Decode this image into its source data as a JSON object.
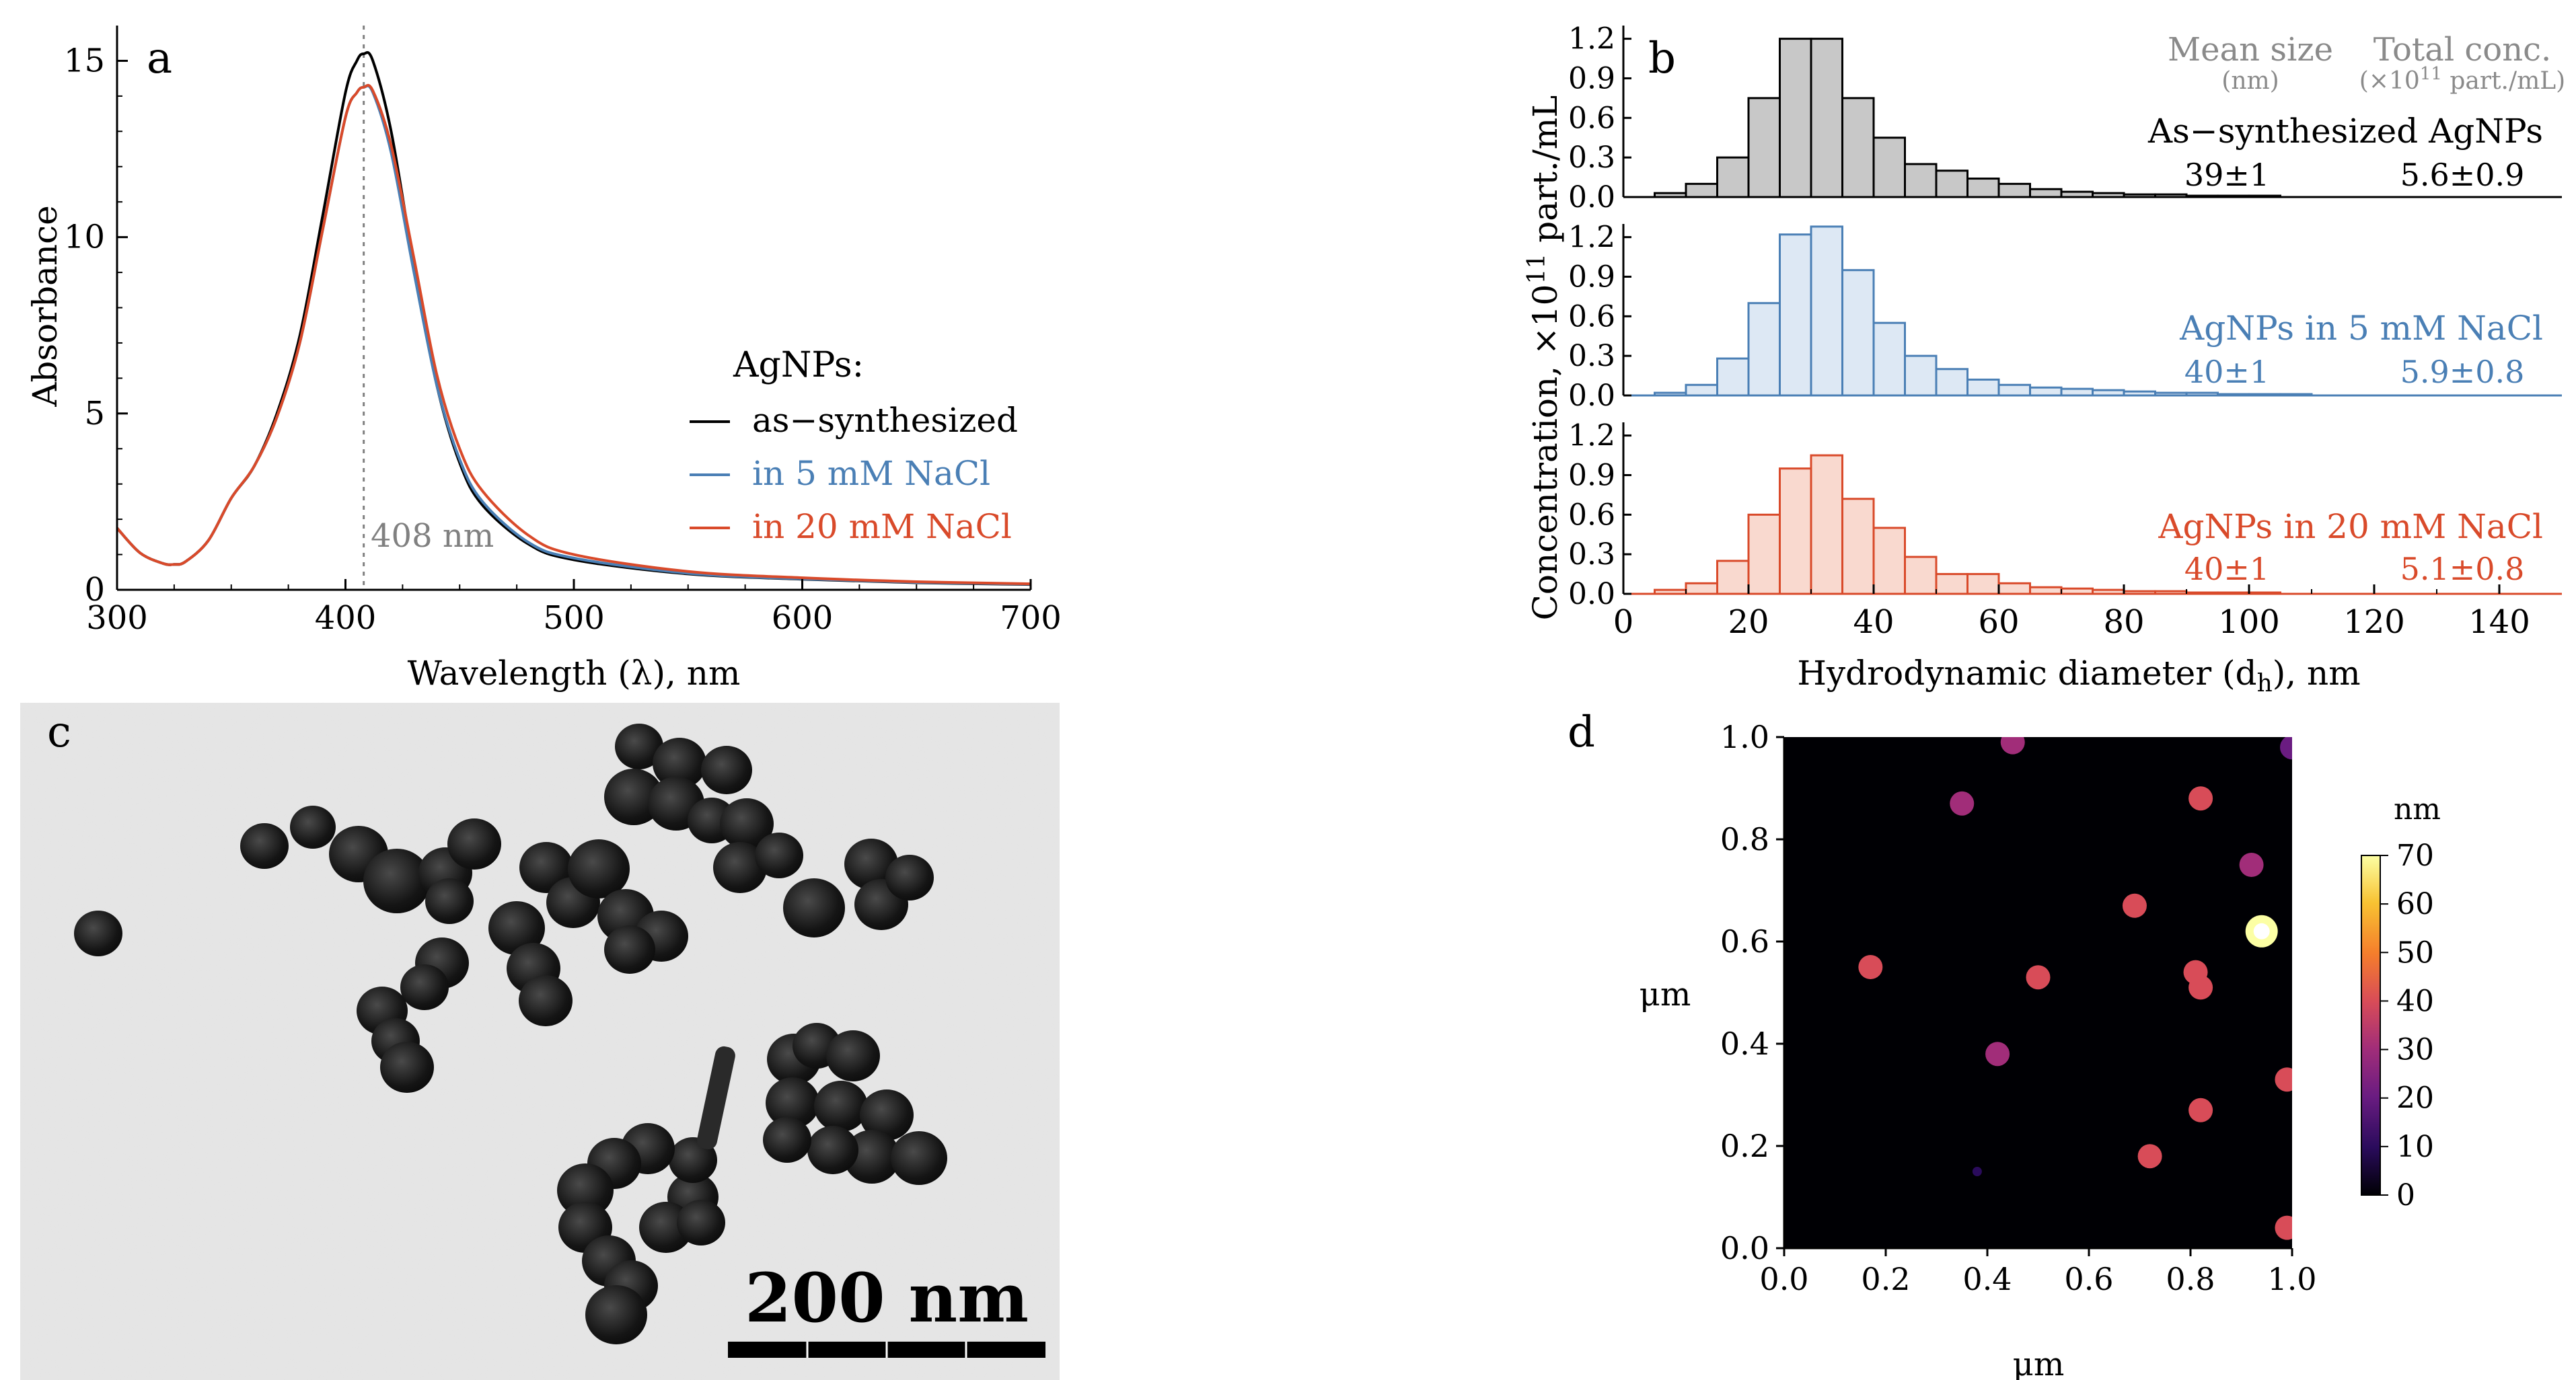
{
  "panel_letters": {
    "a": "a",
    "b": "b",
    "c": "c",
    "d": "d"
  },
  "chart_data": [
    {
      "panel": "a",
      "type": "line",
      "xlabel": "Wavelength (λ), nm",
      "ylabel": "Absorbance",
      "xlim": [
        300,
        700
      ],
      "ylim": [
        0,
        16
      ],
      "xticks": [
        300,
        400,
        500,
        600,
        700
      ],
      "yticks": [
        0,
        5,
        10,
        15
      ],
      "vline": {
        "x": 408,
        "label": "408 nm"
      },
      "legend_title": "AgNPs:",
      "x": [
        300,
        310,
        320,
        325,
        330,
        340,
        350,
        360,
        370,
        380,
        390,
        400,
        405,
        408,
        412,
        420,
        430,
        440,
        450,
        460,
        480,
        500,
        550,
        600,
        650,
        700
      ],
      "series": [
        {
          "name": "as−synthesized",
          "color": "#000000",
          "values": [
            1.75,
            1.05,
            0.75,
            0.72,
            0.8,
            1.4,
            2.6,
            3.5,
            5.0,
            7.2,
            10.6,
            14.1,
            15.0,
            15.2,
            15.0,
            13.0,
            9.2,
            5.8,
            3.6,
            2.4,
            1.3,
            0.85,
            0.45,
            0.3,
            0.2,
            0.15
          ]
        },
        {
          "name": "in 5 mM NaCl",
          "color": "#4a7fb5",
          "values": [
            1.75,
            1.05,
            0.75,
            0.72,
            0.8,
            1.4,
            2.6,
            3.5,
            4.9,
            7.0,
            10.2,
            13.4,
            14.1,
            14.25,
            14.1,
            12.4,
            9.0,
            5.8,
            3.7,
            2.5,
            1.35,
            0.9,
            0.47,
            0.31,
            0.21,
            0.16
          ]
        },
        {
          "name": "in 20 mM NaCl",
          "color": "#d94a2a",
          "values": [
            1.75,
            1.05,
            0.75,
            0.72,
            0.8,
            1.4,
            2.6,
            3.5,
            4.9,
            7.0,
            10.2,
            13.4,
            14.1,
            14.25,
            14.15,
            12.6,
            9.4,
            6.1,
            4.0,
            2.8,
            1.55,
            1.0,
            0.52,
            0.34,
            0.23,
            0.17
          ]
        }
      ]
    },
    {
      "panel": "b",
      "type": "bar",
      "xlabel": "Hydrodynamic diameter (d",
      "xlabel_sub": "h",
      "xlabel_tail": "), nm",
      "ylabel_main": "Concentration, ×10",
      "ylabel_sup": "11",
      "ylabel_tail": " part./mL",
      "xlim": [
        0,
        150
      ],
      "ylim": [
        0,
        1.3
      ],
      "xticks": [
        0,
        20,
        40,
        60,
        80,
        100,
        120,
        140
      ],
      "yticks": [
        0.0,
        0.3,
        0.6,
        0.9,
        1.2
      ],
      "ytick_labels": [
        "0.0",
        "0.3",
        "0.6",
        "0.9",
        "1.2"
      ],
      "bin_width": 5,
      "bin_starts": [
        5,
        10,
        15,
        20,
        25,
        30,
        35,
        40,
        45,
        50,
        55,
        60,
        65,
        70,
        75,
        80,
        85,
        90,
        95,
        100,
        105,
        110,
        115,
        120,
        125,
        130,
        135,
        140,
        145
      ],
      "header": {
        "mean": "Mean size",
        "mean_unit": "(nm)",
        "total": "Total conc.",
        "total_unit_pre": "(×10",
        "total_unit_sup": "11",
        "total_unit_post": " part./mL)"
      },
      "series": [
        {
          "name": "As−synthesized AgNPs",
          "color": "#000000",
          "fill": "#c8c8c8",
          "mean": "39±1",
          "total": "5.6±0.9",
          "values": [
            0.03,
            0.1,
            0.3,
            0.75,
            1.2,
            1.2,
            0.75,
            0.45,
            0.25,
            0.2,
            0.14,
            0.1,
            0.06,
            0.04,
            0.03,
            0.02,
            0.02,
            0.01,
            0.01,
            0.01,
            0.0,
            0.0,
            0.0,
            0.0,
            0.0,
            0.0,
            0.0,
            0.0,
            0.0
          ]
        },
        {
          "name": "AgNPs in 5 mM NaCl",
          "color": "#4a7fb5",
          "fill": "#dde8f4",
          "mean": "40±1",
          "total": "5.9±0.8",
          "values": [
            0.02,
            0.08,
            0.28,
            0.7,
            1.22,
            1.28,
            0.95,
            0.55,
            0.3,
            0.2,
            0.12,
            0.08,
            0.06,
            0.05,
            0.04,
            0.03,
            0.02,
            0.02,
            0.01,
            0.01,
            0.01,
            0.0,
            0.0,
            0.0,
            0.0,
            0.0,
            0.0,
            0.0,
            0.0
          ]
        },
        {
          "name": "AgNPs in 20 mM NaCl",
          "color": "#d94a2a",
          "fill": "#f9d9cf",
          "mean": "40±1",
          "total": "5.1±0.8",
          "values": [
            0.03,
            0.08,
            0.25,
            0.6,
            0.95,
            1.05,
            0.72,
            0.5,
            0.28,
            0.15,
            0.15,
            0.08,
            0.05,
            0.04,
            0.03,
            0.02,
            0.02,
            0.01,
            0.01,
            0.01,
            0.0,
            0.0,
            0.0,
            0.0,
            0.0,
            0.0,
            0.0,
            0.0,
            0.0
          ]
        }
      ]
    },
    {
      "panel": "d",
      "type": "heatmap",
      "xlabel": "μm",
      "ylabel": "μm",
      "xlim": [
        0.0,
        1.0
      ],
      "ylim": [
        0.0,
        1.0
      ],
      "xticks": [
        "0.0",
        "0.2",
        "0.4",
        "0.6",
        "0.8",
        "1.0"
      ],
      "yticks": [
        "0.0",
        "0.2",
        "0.4",
        "0.6",
        "0.8",
        "1.0"
      ],
      "colorbar_title": "nm",
      "colorbar_range": [
        0,
        70
      ],
      "colorbar_ticks": [
        0,
        10,
        20,
        30,
        40,
        50,
        60,
        70
      ],
      "particles": [
        {
          "x": 0.45,
          "y": 0.99,
          "h": 30
        },
        {
          "x": 0.35,
          "y": 0.87,
          "h": 25
        },
        {
          "x": 0.82,
          "y": 0.88,
          "h": 40
        },
        {
          "x": 0.92,
          "y": 0.75,
          "h": 30
        },
        {
          "x": 0.69,
          "y": 0.67,
          "h": 40
        },
        {
          "x": 0.94,
          "y": 0.62,
          "h": 70
        },
        {
          "x": 0.17,
          "y": 0.55,
          "h": 35
        },
        {
          "x": 0.5,
          "y": 0.53,
          "h": 35
        },
        {
          "x": 0.81,
          "y": 0.54,
          "h": 35
        },
        {
          "x": 0.82,
          "y": 0.51,
          "h": 40
        },
        {
          "x": 0.42,
          "y": 0.38,
          "h": 30
        },
        {
          "x": 0.99,
          "y": 0.33,
          "h": 35
        },
        {
          "x": 0.82,
          "y": 0.27,
          "h": 35
        },
        {
          "x": 0.72,
          "y": 0.18,
          "h": 35
        },
        {
          "x": 0.38,
          "y": 0.15,
          "h": 10
        },
        {
          "x": 0.99,
          "y": 0.04,
          "h": 35
        },
        {
          "x": 1.0,
          "y": 0.98,
          "h": 20
        }
      ]
    }
  ],
  "tem": {
    "scale_label": "200 nm"
  }
}
